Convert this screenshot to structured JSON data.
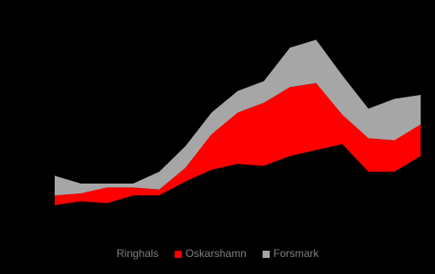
{
  "chart_data": {
    "type": "stacked-area",
    "categories": [
      null,
      null,
      null,
      null,
      null,
      null,
      null,
      null,
      null,
      null,
      null,
      null,
      null,
      null,
      null
    ],
    "ylim": [
      0,
      100
    ],
    "series": [
      {
        "name": "Ringhals",
        "color": "#000000",
        "values": [
          14,
          16,
          15,
          19,
          19,
          26,
          32,
          35,
          34,
          39,
          42,
          45,
          31,
          31,
          39
        ]
      },
      {
        "name": "Oskarshamn",
        "color": "#ff0000",
        "values": [
          5,
          4,
          8,
          4,
          3,
          7,
          18,
          26,
          32,
          35,
          34,
          15,
          17,
          16,
          16
        ]
      },
      {
        "name": "Forsmark",
        "color": "#a6a6a6",
        "values": [
          10,
          5,
          2,
          2,
          9,
          11,
          11,
          11,
          11,
          20,
          22,
          20,
          15,
          21,
          15
        ]
      }
    ],
    "legend": "bottom"
  }
}
